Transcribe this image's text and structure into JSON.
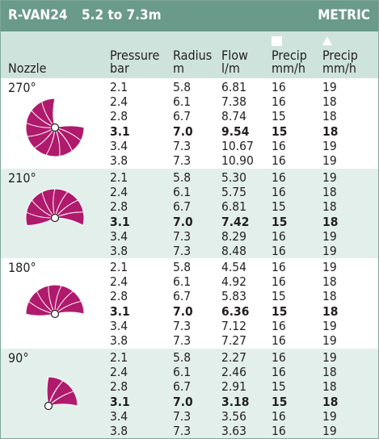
{
  "title": {
    "model": "R-VAN24",
    "range": "5.2 to 7.3m",
    "units": "METRIC"
  },
  "columns": {
    "nozzle": "Nozzle",
    "pressure": [
      "Pressure",
      "bar"
    ],
    "radius": [
      "Radius",
      "m"
    ],
    "flow": [
      "Flow",
      "l/m"
    ],
    "precip_square": [
      "Precip",
      "mm/h"
    ],
    "precip_triangle": [
      "Precip",
      "mm/h"
    ]
  },
  "colors": {
    "title_bar": "#6a9a8a",
    "header_bg": "#cfe3dd",
    "alt_bg": "#e3efeb",
    "nozzle_magenta": "#b01a6c"
  },
  "groups": [
    {
      "label": "270°",
      "arc": 270,
      "rows": [
        [
          "2.1",
          "5.8",
          "6.81",
          "16",
          "19"
        ],
        [
          "2.4",
          "6.1",
          "7.38",
          "16",
          "18"
        ],
        [
          "2.8",
          "6.7",
          "8.74",
          "15",
          "18"
        ],
        [
          "3.1",
          "7.0",
          "9.54",
          "15",
          "18"
        ],
        [
          "3.4",
          "7.3",
          "10.67",
          "16",
          "19"
        ],
        [
          "3.8",
          "7.3",
          "10.90",
          "16",
          "19"
        ]
      ]
    },
    {
      "label": "210°",
      "arc": 210,
      "rows": [
        [
          "2.1",
          "5.8",
          "5.30",
          "16",
          "19"
        ],
        [
          "2.4",
          "6.1",
          "5.75",
          "16",
          "18"
        ],
        [
          "2.8",
          "6.7",
          "6.81",
          "15",
          "18"
        ],
        [
          "3.1",
          "7.0",
          "7.42",
          "15",
          "18"
        ],
        [
          "3.4",
          "7.3",
          "8.29",
          "16",
          "19"
        ],
        [
          "3.8",
          "7.3",
          "8.48",
          "16",
          "19"
        ]
      ]
    },
    {
      "label": "180°",
      "arc": 180,
      "rows": [
        [
          "2.1",
          "5.8",
          "4.54",
          "16",
          "19"
        ],
        [
          "2.4",
          "6.1",
          "4.92",
          "16",
          "18"
        ],
        [
          "2.8",
          "6.7",
          "5.83",
          "15",
          "18"
        ],
        [
          "3.1",
          "7.0",
          "6.36",
          "15",
          "18"
        ],
        [
          "3.4",
          "7.3",
          "7.12",
          "16",
          "19"
        ],
        [
          "3.8",
          "7.3",
          "7.27",
          "16",
          "19"
        ]
      ]
    },
    {
      "label": "90°",
      "arc": 90,
      "rows": [
        [
          "2.1",
          "5.8",
          "2.27",
          "16",
          "19"
        ],
        [
          "2.4",
          "6.1",
          "2.46",
          "16",
          "18"
        ],
        [
          "2.8",
          "6.7",
          "2.91",
          "15",
          "18"
        ],
        [
          "3.1",
          "7.0",
          "3.18",
          "15",
          "18"
        ],
        [
          "3.4",
          "7.3",
          "3.56",
          "16",
          "19"
        ],
        [
          "3.8",
          "7.3",
          "3.63",
          "16",
          "19"
        ]
      ]
    }
  ],
  "bold_row_index": 3
}
